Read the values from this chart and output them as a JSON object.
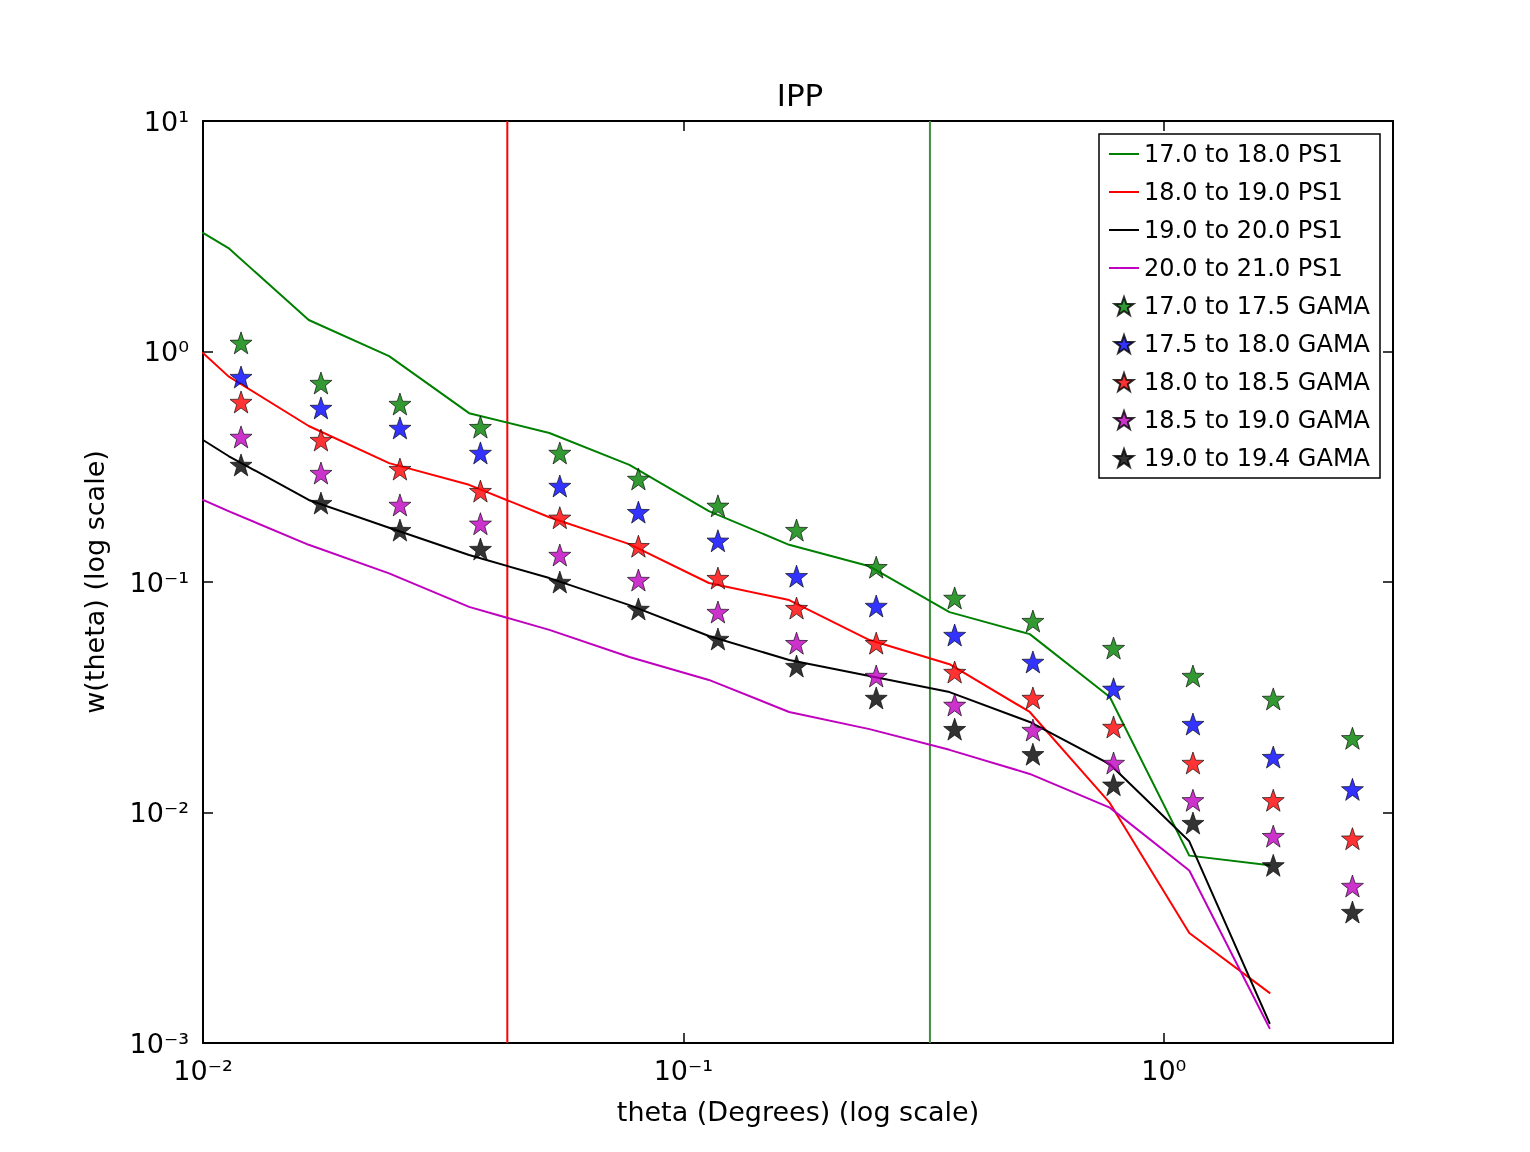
{
  "chart_data": {
    "type": "line",
    "title": "IPP",
    "xlabel": "theta (Degrees) (log scale)",
    "ylabel": "w(theta) (log scale)",
    "log": "xy",
    "grid": false,
    "legend": "top right",
    "xlim": [
      0.01,
      3
    ],
    "ylim": [
      0.001,
      10
    ],
    "xticks": [
      {
        "value": 0.01,
        "label": "10⁻²"
      },
      {
        "value": 0.1,
        "label": "10⁻¹"
      },
      {
        "value": 1,
        "label": "10⁰"
      }
    ],
    "yticks": [
      {
        "value": 0.001,
        "label": "10⁻³"
      },
      {
        "value": 0.01,
        "label": "10⁻²"
      },
      {
        "value": 0.1,
        "label": "10⁻¹"
      },
      {
        "value": 1,
        "label": "10⁰"
      },
      {
        "value": 10,
        "label": "10¹"
      }
    ],
    "ref_lines": [
      {
        "axis": "x",
        "value": 0.043,
        "color": "#ff0000"
      },
      {
        "axis": "x",
        "value": 0.326,
        "color": "#3f8f3f"
      }
    ],
    "series": [
      {
        "name": "17.0 to 18.0 PS1",
        "marker": "none",
        "color": "#008000",
        "x": [
          0.01,
          0.0113,
          0.0166,
          0.0244,
          0.0358,
          0.0526,
          0.0772,
          0.113,
          0.166,
          0.244,
          0.358,
          0.526,
          0.772,
          1.13,
          1.66
        ],
        "values": [
          3.27,
          2.81,
          1.37,
          0.955,
          0.54,
          0.443,
          0.322,
          0.203,
          0.145,
          0.117,
          0.074,
          0.0594,
          0.0317,
          0.0065,
          0.0059
        ]
      },
      {
        "name": "18.0 to 19.0 PS1",
        "marker": "none",
        "color": "#ff0000",
        "x": [
          0.01,
          0.0113,
          0.0166,
          0.0244,
          0.0358,
          0.0526,
          0.0772,
          0.113,
          0.166,
          0.244,
          0.358,
          0.526,
          0.772,
          1.13,
          1.66
        ],
        "values": [
          0.986,
          0.78,
          0.475,
          0.328,
          0.264,
          0.191,
          0.146,
          0.099,
          0.0835,
          0.056,
          0.044,
          0.0273,
          0.011,
          0.003,
          0.00165
        ]
      },
      {
        "name": "19.0 to 20.0 PS1",
        "marker": "none",
        "color": "#000000",
        "x": [
          0.01,
          0.0113,
          0.0166,
          0.0244,
          0.0358,
          0.0526,
          0.0772,
          0.113,
          0.166,
          0.244,
          0.358,
          0.526,
          0.772,
          1.13,
          1.66
        ],
        "values": [
          0.413,
          0.352,
          0.227,
          0.172,
          0.131,
          0.104,
          0.0794,
          0.0583,
          0.0459,
          0.0391,
          0.0333,
          0.0247,
          0.0162,
          0.0075,
          0.00122
        ]
      },
      {
        "name": "20.0 to 21.0 PS1",
        "marker": "none",
        "color": "#bf00bf",
        "x": [
          0.01,
          0.0113,
          0.0166,
          0.0244,
          0.0358,
          0.0526,
          0.0772,
          0.113,
          0.166,
          0.244,
          0.358,
          0.526,
          0.772,
          1.13,
          1.66
        ],
        "values": [
          0.227,
          0.203,
          0.145,
          0.109,
          0.078,
          0.062,
          0.0473,
          0.0376,
          0.0273,
          0.023,
          0.0187,
          0.0147,
          0.0105,
          0.0056,
          0.00116
        ]
      },
      {
        "name": "17.0 to 17.5 GAMA",
        "type": "scatter",
        "marker": "star",
        "color": "#008000",
        "x": [
          0.012,
          0.0176,
          0.0257,
          0.0378,
          0.0553,
          0.0806,
          0.118,
          0.172,
          0.252,
          0.367,
          0.534,
          0.786,
          1.15,
          1.69,
          2.47
        ],
        "values": [
          1.09,
          0.73,
          0.592,
          0.47,
          0.363,
          0.28,
          0.214,
          0.168,
          0.116,
          0.0853,
          0.0677,
          0.0517,
          0.0391,
          0.0311,
          0.021
        ]
      },
      {
        "name": "17.5 to 18.0 GAMA",
        "type": "scatter",
        "marker": "star",
        "color": "#0000ff",
        "x": [
          0.012,
          0.0176,
          0.0257,
          0.0378,
          0.0553,
          0.0806,
          0.118,
          0.172,
          0.252,
          0.367,
          0.534,
          0.786,
          1.15,
          1.69,
          2.47
        ],
        "values": [
          0.775,
          0.569,
          0.466,
          0.363,
          0.261,
          0.201,
          0.151,
          0.106,
          0.0787,
          0.0589,
          0.045,
          0.0344,
          0.0242,
          0.0174,
          0.0126
        ]
      },
      {
        "name": "18.0 to 18.5 GAMA",
        "type": "scatter",
        "marker": "star",
        "color": "#ff0000",
        "x": [
          0.012,
          0.0176,
          0.0257,
          0.0378,
          0.0553,
          0.0806,
          0.118,
          0.172,
          0.252,
          0.367,
          0.534,
          0.786,
          1.15,
          1.69,
          2.47
        ],
        "values": [
          0.604,
          0.413,
          0.309,
          0.248,
          0.19,
          0.143,
          0.104,
          0.0771,
          0.0543,
          0.0407,
          0.0314,
          0.0235,
          0.0164,
          0.0113,
          0.0077
        ]
      },
      {
        "name": "18.5 to 19.0 GAMA",
        "type": "scatter",
        "marker": "star",
        "color": "#bf00bf",
        "x": [
          0.012,
          0.0176,
          0.0257,
          0.0378,
          0.0553,
          0.0806,
          0.118,
          0.172,
          0.252,
          0.367,
          0.534,
          0.786,
          1.15,
          1.69,
          2.47
        ],
        "values": [
          0.426,
          0.297,
          0.216,
          0.179,
          0.131,
          0.102,
          0.0741,
          0.0543,
          0.0391,
          0.0293,
          0.0228,
          0.0164,
          0.0113,
          0.0079,
          0.0048
        ]
      },
      {
        "name": "19.0 to 19.4 GAMA",
        "type": "scatter",
        "marker": "star",
        "color": "#000000",
        "x": [
          0.012,
          0.0176,
          0.0257,
          0.0378,
          0.0553,
          0.0806,
          0.118,
          0.172,
          0.252,
          0.367,
          0.534,
          0.786,
          1.15,
          1.69,
          2.47
        ],
        "values": [
          0.322,
          0.22,
          0.168,
          0.139,
          0.1,
          0.0764,
          0.0566,
          0.0432,
          0.0314,
          0.023,
          0.0179,
          0.0132,
          0.009,
          0.0059,
          0.0037
        ]
      }
    ]
  }
}
